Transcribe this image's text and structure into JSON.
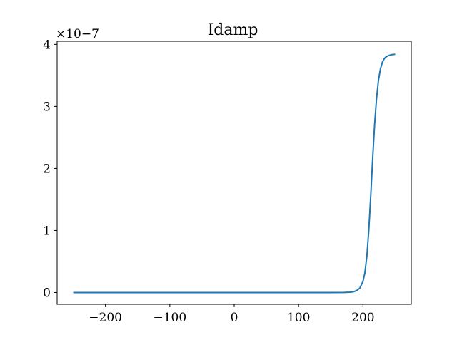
{
  "chart_data": {
    "type": "line",
    "title": "Idamp",
    "xlabel": "",
    "ylabel": "",
    "xlim": [
      -275,
      275
    ],
    "ylim": [
      -1.9e-08,
      4.05e-07
    ],
    "x_ticks": [
      -200,
      -100,
      0,
      100,
      200
    ],
    "x_tick_labels": [
      "−200",
      "−100",
      "0",
      "100",
      "200"
    ],
    "y_ticks": [
      0,
      1e-07,
      2e-07,
      3e-07,
      4e-07
    ],
    "y_tick_labels": [
      "0",
      "1",
      "2",
      "3",
      "4"
    ],
    "y_offset_text": "×10−7",
    "grid": false,
    "series": [
      {
        "color": "#1f77b4",
        "x": [
          -250,
          -200,
          -150,
          -100,
          -50,
          0,
          50,
          100,
          150,
          170,
          180,
          185,
          190,
          195,
          200,
          203,
          206,
          209,
          212,
          215,
          218,
          221,
          224,
          227,
          230,
          233,
          236,
          240,
          245,
          250
        ],
        "y": [
          0,
          0,
          0,
          0,
          0,
          0,
          0,
          0,
          0,
          1e-10,
          5e-10,
          1.2e-09,
          3e-09,
          7e-09,
          1.8e-08,
          3.2e-08,
          5.8e-08,
          1e-07,
          1.55e-07,
          2.15e-07,
          2.7e-07,
          3.12e-07,
          3.42e-07,
          3.6e-07,
          3.71e-07,
          3.77e-07,
          3.8e-07,
          3.82e-07,
          3.835e-07,
          3.84e-07
        ]
      }
    ]
  }
}
